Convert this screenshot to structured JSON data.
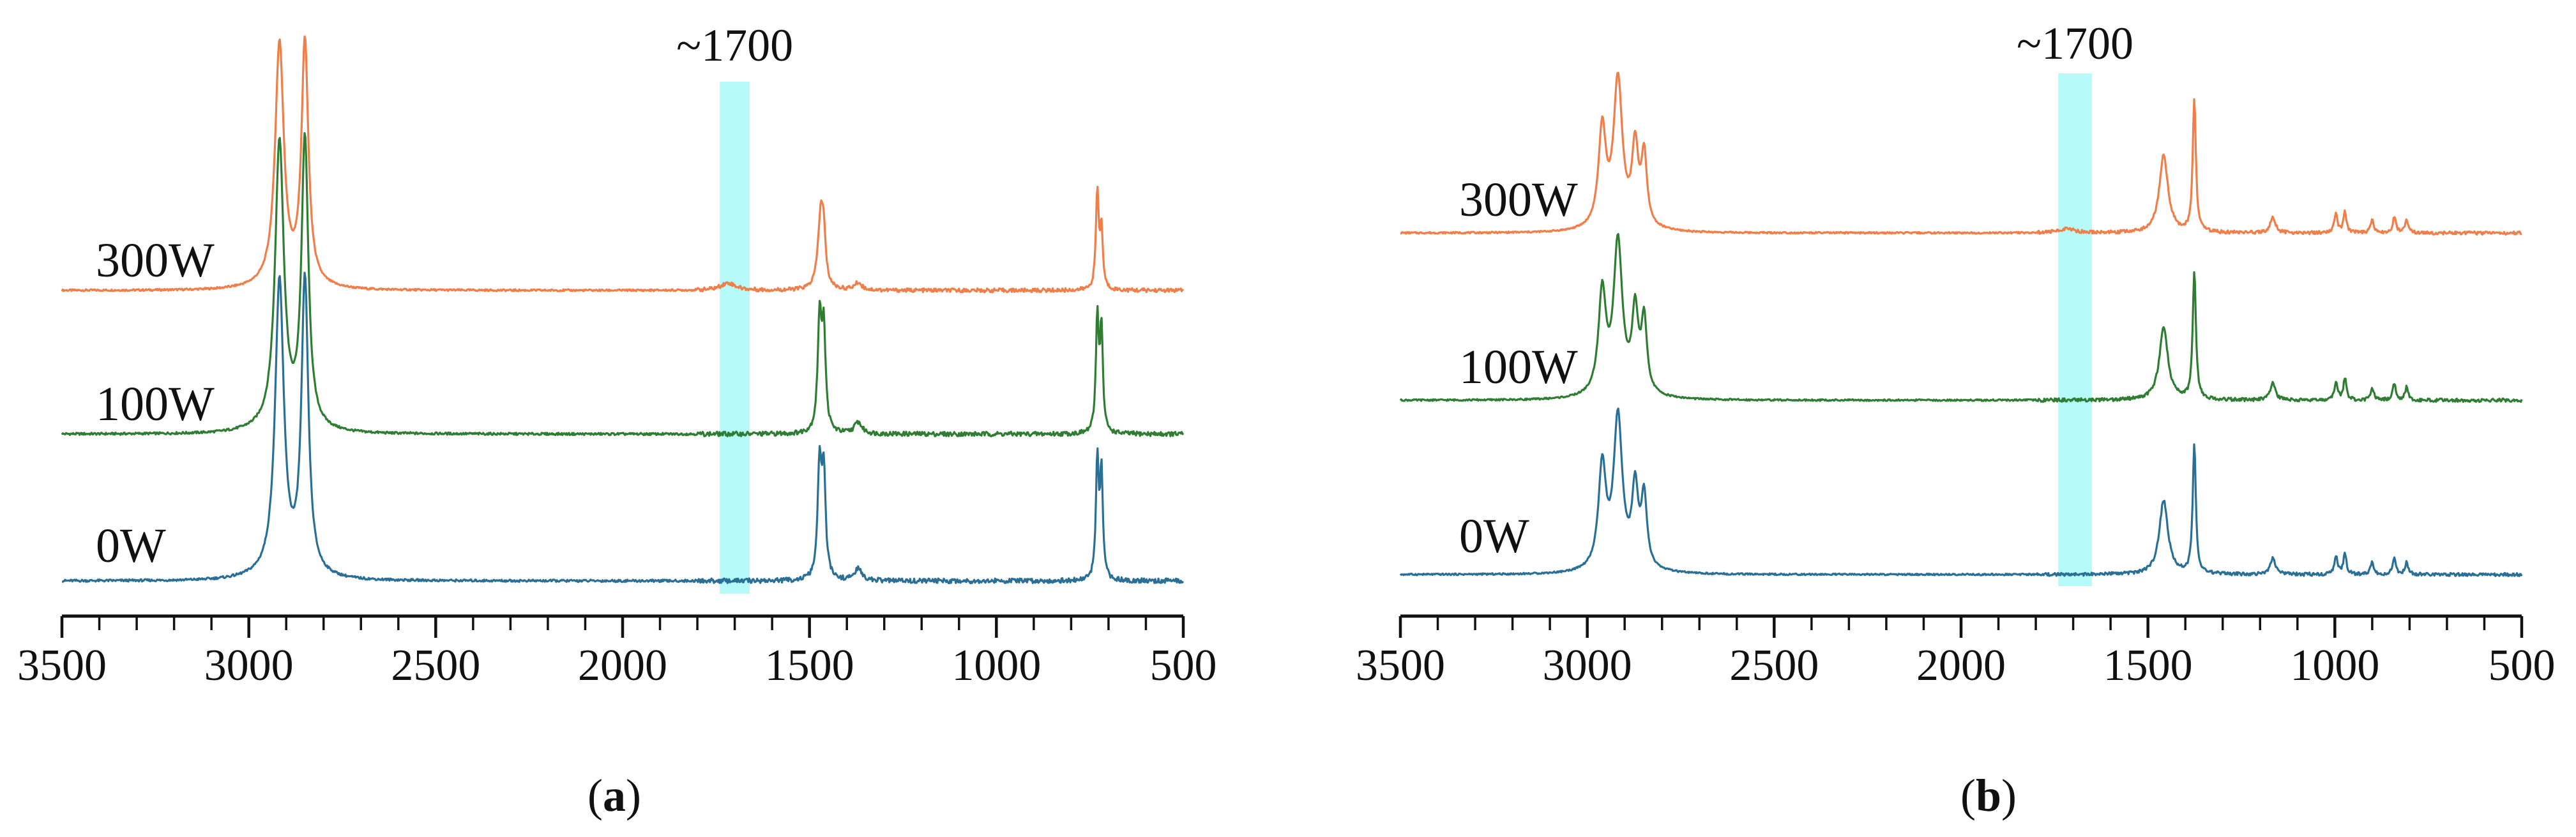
{
  "colors": {
    "s300": "#f07e48",
    "s100": "#2e7d32",
    "s0": "#2a6f96",
    "highlight": "#2ef2f2",
    "axis": "#111111"
  },
  "chart_data": [
    {
      "panel": "a",
      "type": "line",
      "caption_letter": "a",
      "x_range": [
        3500,
        500
      ],
      "x_reversed": true,
      "ticks": [
        3500,
        3000,
        2500,
        2000,
        1500,
        1000,
        500
      ],
      "tick_labels": [
        "3500",
        "3000",
        "2500",
        "2000",
        "1500",
        "1000",
        "500"
      ],
      "annotation": {
        "label": "~1700",
        "band": [
          1740,
          1660
        ]
      },
      "series": [
        {
          "name": "300W",
          "color_key": "s300",
          "stack_level": 2,
          "peaks": [
            {
              "x": 2918,
              "h": 1.0,
              "w": 14
            },
            {
              "x": 2850,
              "h": 1.0,
              "w": 11
            },
            {
              "x": 1470,
              "h": 0.3,
              "w": 9
            },
            {
              "x": 1462,
              "h": 0.16,
              "w": 6
            },
            {
              "x": 1370,
              "h": 0.03,
              "w": 12
            },
            {
              "x": 1718,
              "h": 0.03,
              "w": 25
            },
            {
              "x": 730,
              "h": 0.4,
              "w": 4.5
            },
            {
              "x": 719,
              "h": 0.24,
              "w": 4.5
            }
          ]
        },
        {
          "name": "100W",
          "color_key": "s100",
          "stack_level": 1,
          "peaks": [
            {
              "x": 2918,
              "h": 1.0,
              "w": 14
            },
            {
              "x": 2850,
              "h": 1.0,
              "w": 11
            },
            {
              "x": 1473,
              "h": 0.38,
              "w": 6
            },
            {
              "x": 1462,
              "h": 0.35,
              "w": 6
            },
            {
              "x": 1370,
              "h": 0.04,
              "w": 12
            },
            {
              "x": 730,
              "h": 0.4,
              "w": 4.5
            },
            {
              "x": 719,
              "h": 0.36,
              "w": 4.5
            }
          ]
        },
        {
          "name": "0W",
          "color_key": "s0",
          "stack_level": 0,
          "peaks": [
            {
              "x": 2918,
              "h": 1.0,
              "w": 14
            },
            {
              "x": 2850,
              "h": 1.0,
              "w": 11
            },
            {
              "x": 1473,
              "h": 0.38,
              "w": 6
            },
            {
              "x": 1462,
              "h": 0.35,
              "w": 6
            },
            {
              "x": 1370,
              "h": 0.04,
              "w": 12
            },
            {
              "x": 730,
              "h": 0.4,
              "w": 4.5
            },
            {
              "x": 719,
              "h": 0.36,
              "w": 4.5
            }
          ]
        }
      ]
    },
    {
      "panel": "b",
      "type": "line",
      "caption_letter": "b",
      "x_range": [
        3500,
        500
      ],
      "x_reversed": true,
      "ticks": [
        3500,
        3000,
        2500,
        2000,
        1500,
        1000,
        500
      ],
      "tick_labels": [
        "3500",
        "3000",
        "2500",
        "2000",
        "1500",
        "1000",
        "500"
      ],
      "annotation": {
        "label": "~1700",
        "band": [
          1740,
          1650
        ]
      },
      "series": [
        {
          "name": "300W",
          "color_key": "s300",
          "stack_level": 2,
          "peaks": [
            {
              "x": 2960,
              "h": 0.48,
              "w": 12
            },
            {
              "x": 2918,
              "h": 0.72,
              "w": 14
            },
            {
              "x": 2872,
              "h": 0.38,
              "w": 10
            },
            {
              "x": 2848,
              "h": 0.34,
              "w": 9
            },
            {
              "x": 1718,
              "h": 0.02,
              "w": 25
            },
            {
              "x": 1458,
              "h": 0.38,
              "w": 14
            },
            {
              "x": 1376,
              "h": 0.65,
              "w": 5
            },
            {
              "x": 1166,
              "h": 0.08,
              "w": 8
            },
            {
              "x": 997,
              "h": 0.09,
              "w": 5
            },
            {
              "x": 973,
              "h": 0.1,
              "w": 5
            },
            {
              "x": 900,
              "h": 0.06,
              "w": 5
            },
            {
              "x": 841,
              "h": 0.08,
              "w": 5
            },
            {
              "x": 808,
              "h": 0.06,
              "w": 5
            }
          ]
        },
        {
          "name": "100W",
          "color_key": "s100",
          "stack_level": 1,
          "peaks": [
            {
              "x": 2960,
              "h": 0.48,
              "w": 12
            },
            {
              "x": 2918,
              "h": 0.72,
              "w": 14
            },
            {
              "x": 2872,
              "h": 0.38,
              "w": 10
            },
            {
              "x": 2848,
              "h": 0.34,
              "w": 9
            },
            {
              "x": 1458,
              "h": 0.34,
              "w": 14
            },
            {
              "x": 1376,
              "h": 0.61,
              "w": 5
            },
            {
              "x": 1166,
              "h": 0.08,
              "w": 8
            },
            {
              "x": 997,
              "h": 0.09,
              "w": 5
            },
            {
              "x": 973,
              "h": 0.1,
              "w": 5
            },
            {
              "x": 900,
              "h": 0.06,
              "w": 5
            },
            {
              "x": 841,
              "h": 0.08,
              "w": 5
            },
            {
              "x": 808,
              "h": 0.06,
              "w": 5
            }
          ]
        },
        {
          "name": "0W",
          "color_key": "s0",
          "stack_level": 0,
          "peaks": [
            {
              "x": 2960,
              "h": 0.5,
              "w": 12
            },
            {
              "x": 2918,
              "h": 0.74,
              "w": 14
            },
            {
              "x": 2872,
              "h": 0.38,
              "w": 10
            },
            {
              "x": 2848,
              "h": 0.34,
              "w": 9
            },
            {
              "x": 1458,
              "h": 0.36,
              "w": 14
            },
            {
              "x": 1376,
              "h": 0.63,
              "w": 5
            },
            {
              "x": 1166,
              "h": 0.08,
              "w": 8
            },
            {
              "x": 997,
              "h": 0.09,
              "w": 5
            },
            {
              "x": 973,
              "h": 0.1,
              "w": 5
            },
            {
              "x": 900,
              "h": 0.06,
              "w": 5
            },
            {
              "x": 841,
              "h": 0.08,
              "w": 5
            },
            {
              "x": 808,
              "h": 0.06,
              "w": 5
            }
          ]
        }
      ]
    }
  ]
}
